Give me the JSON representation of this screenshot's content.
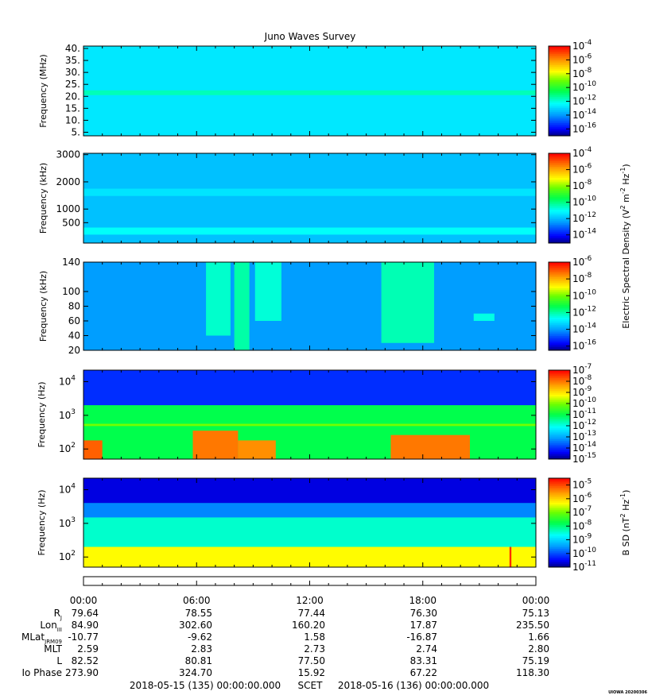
{
  "title": "Juno Waves Survey",
  "chart_data": [
    {
      "type": "heatmap",
      "name": "panel-1",
      "ylabel": "Frequency (MHz)",
      "yscale": "linear",
      "ylim": [
        3.5,
        41
      ],
      "yticks": [
        {
          "v": 5,
          "label": "5."
        },
        {
          "v": 10,
          "label": "10."
        },
        {
          "v": 15,
          "label": "15."
        },
        {
          "v": 20,
          "label": "20."
        },
        {
          "v": 25,
          "label": "25."
        },
        {
          "v": 30,
          "label": "30."
        },
        {
          "v": 35,
          "label": "35."
        },
        {
          "v": 40,
          "label": "40."
        }
      ],
      "colorbar": {
        "range": [
          -17,
          -4
        ],
        "ticks": [
          -4,
          -6,
          -8,
          -10,
          -12,
          -14,
          -16
        ]
      },
      "background_log": -12.7,
      "features": [
        {
          "y": [
            20.5,
            22.5
          ],
          "x": [
            0,
            24
          ],
          "level": -11.6
        }
      ]
    },
    {
      "type": "heatmap",
      "name": "panel-2",
      "ylabel": "Frequency (kHz)",
      "yscale": "linear",
      "ylim": [
        -250,
        3050
      ],
      "yticks": [
        {
          "v": 500,
          "label": "500"
        },
        {
          "v": 1000,
          "label": "1000"
        },
        {
          "v": 2000,
          "label": "2000"
        },
        {
          "v": 3000,
          "label": "3000"
        }
      ],
      "colorbar": {
        "range": [
          -15,
          -4
        ],
        "ticks": [
          -4,
          -6,
          -8,
          -10,
          -12,
          -14
        ],
        "label_parts": [
          "Electric Spectral Density (V",
          "2",
          " m",
          "-2",
          " Hz",
          "-1",
          ")"
        ]
      },
      "background_log": -11.9,
      "features": [
        {
          "y": [
            1480,
            1750
          ],
          "x": [
            0,
            24
          ],
          "level": -11.4
        },
        {
          "y": [
            60,
            320
          ],
          "x": [
            0,
            24
          ],
          "level": -11.0
        }
      ]
    },
    {
      "type": "heatmap",
      "name": "panel-3",
      "ylabel": "Frequency (kHz)",
      "yscale": "linear",
      "ylim": [
        20,
        140
      ],
      "yticks": [
        {
          "v": 20,
          "label": "20"
        },
        {
          "v": 40,
          "label": "40"
        },
        {
          "v": 60,
          "label": "60"
        },
        {
          "v": 80,
          "label": "80"
        },
        {
          "v": 100,
          "label": "100"
        },
        {
          "v": 140,
          "label": "140"
        }
      ],
      "colorbar": {
        "range": [
          -16.5,
          -6
        ],
        "ticks": [
          -6,
          -8,
          -10,
          -12,
          -14,
          -16
        ]
      },
      "background_log": -14.0,
      "features": [
        {
          "y": [
            40,
            140
          ],
          "x": [
            6.5,
            7.8
          ],
          "level": -12.3
        },
        {
          "y": [
            20,
            140
          ],
          "x": [
            8.0,
            8.8
          ],
          "level": -12.0
        },
        {
          "y": [
            60,
            140
          ],
          "x": [
            9.1,
            10.5
          ],
          "level": -12.4
        },
        {
          "y": [
            30,
            140
          ],
          "x": [
            15.8,
            18.6
          ],
          "level": -12.1
        },
        {
          "y": [
            60,
            70
          ],
          "x": [
            20.7,
            21.8
          ],
          "level": -12.5
        }
      ]
    },
    {
      "type": "heatmap",
      "name": "panel-4",
      "ylabel": "Frequency (Hz)",
      "yscale": "log",
      "ylim": [
        50,
        22000
      ],
      "yticks": [
        {
          "v": 100,
          "base": "10",
          "exp": "2"
        },
        {
          "v": 1000,
          "base": "10",
          "exp": "3"
        },
        {
          "v": 10000,
          "base": "10",
          "exp": "4"
        }
      ],
      "colorbar": {
        "range": [
          -15,
          -7
        ],
        "ticks": [
          -7,
          -8,
          -9,
          -10,
          -11,
          -12,
          -13,
          -14,
          -15
        ]
      },
      "background_log": -11.0,
      "features": [
        {
          "y": [
            2000,
            22000
          ],
          "x": [
            0,
            24
          ],
          "level": -14.0
        },
        {
          "y": [
            50,
            180
          ],
          "x": [
            0,
            1.0
          ],
          "level": -7.8
        },
        {
          "y": [
            50,
            350
          ],
          "x": [
            5.8,
            8.2
          ],
          "level": -8.0
        },
        {
          "y": [
            50,
            180
          ],
          "x": [
            8.2,
            10.2
          ],
          "level": -8.2
        },
        {
          "y": [
            50,
            260
          ],
          "x": [
            16.3,
            20.5
          ],
          "level": -8.0
        },
        {
          "y": [
            480,
            560
          ],
          "x": [
            0,
            24
          ],
          "level": -10.0
        }
      ]
    },
    {
      "type": "heatmap",
      "name": "panel-5",
      "ylabel_parts": [
        "Frequency (Hz)"
      ],
      "ylabel": "Frequency (Hz)",
      "yscale": "log",
      "ylim": [
        50,
        22000
      ],
      "yticks": [
        {
          "v": 100,
          "base": "10",
          "exp": "2"
        },
        {
          "v": 1000,
          "base": "10",
          "exp": "3"
        },
        {
          "v": 10000,
          "base": "10",
          "exp": "4"
        }
      ],
      "colorbar": {
        "range": [
          -11,
          -4.5
        ],
        "ticks": [
          -5,
          -6,
          -7,
          -8,
          -9,
          -10,
          -11
        ],
        "label_parts": [
          "B SD (nT",
          "2",
          " Hz",
          "-1",
          ")"
        ]
      },
      "background_log": -8.4,
      "features": [
        {
          "y": [
            4000,
            22000
          ],
          "x": [
            0,
            24
          ],
          "level": -10.6
        },
        {
          "y": [
            1500,
            4000
          ],
          "x": [
            0,
            24
          ],
          "level": -9.6
        },
        {
          "y": [
            50,
            200
          ],
          "x": [
            0,
            24
          ],
          "level": -6.3
        },
        {
          "y": [
            50,
            200
          ],
          "x": [
            22.6,
            22.7
          ],
          "level": -4.8
        }
      ]
    }
  ],
  "xaxis": {
    "ticks": [
      "00:00",
      "06:00",
      "12:00",
      "18:00",
      "00:00"
    ],
    "hours": [
      0,
      6,
      12,
      18,
      24
    ]
  },
  "ephemeris": {
    "rows": [
      {
        "label": "R",
        "sub": "J",
        "values": [
          "79.64",
          "78.55",
          "77.44",
          "76.30",
          "75.13"
        ]
      },
      {
        "label": "Lon",
        "sub": "III",
        "values": [
          "84.90",
          "302.60",
          "160.20",
          "17.87",
          "235.50"
        ]
      },
      {
        "label": "MLat",
        "sub": "JRM09",
        "values": [
          "-10.77",
          "-9.62",
          "1.58",
          "-16.87",
          "1.66"
        ]
      },
      {
        "label": "MLT",
        "sub": "",
        "values": [
          "2.59",
          "2.83",
          "2.73",
          "2.74",
          "2.80"
        ]
      },
      {
        "label": "L",
        "sub": "",
        "values": [
          "82.52",
          "80.81",
          "77.50",
          "83.31",
          "75.19"
        ]
      },
      {
        "label": "Io Phase",
        "sub": "",
        "values": [
          "273.90",
          "324.70",
          "15.92",
          "67.22",
          "118.30"
        ]
      }
    ]
  },
  "footer": {
    "start": "2018-05-15 (135) 00:00:00.000",
    "scet": "SCET",
    "end": "2018-05-16 (136) 00:00:00.000",
    "stamp": "UIOWA 20200306"
  }
}
